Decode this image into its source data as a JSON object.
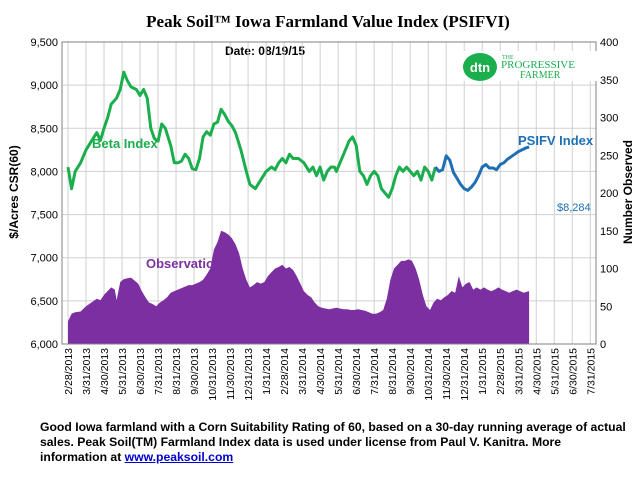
{
  "chart_data": {
    "type": "line",
    "title": "Peak Soil™ Iowa Farmland Value Index (PSIFVI)",
    "subtitle": "Date: 08/19/15",
    "ylabel_left": "$/Acres CSR(60)",
    "ylabel_right": "Number Observed",
    "ylim_left": [
      6000,
      9500
    ],
    "ylim_right": [
      0,
      400
    ],
    "yticks_left": [
      "6,000",
      "6,500",
      "7,000",
      "7,500",
      "8,000",
      "8,500",
      "9,000",
      "9,500"
    ],
    "yticks_right": [
      "0",
      "50",
      "100",
      "150",
      "200",
      "250",
      "300",
      "350",
      "400"
    ],
    "x_tick_labels": [
      "2/28/2013",
      "3/31/2013",
      "4/30/2013",
      "5/31/2013",
      "6/30/2013",
      "7/31/2013",
      "8/31/2013",
      "9/30/2013",
      "10/31/2013",
      "11/30/2013",
      "12/31/2013",
      "1/31/2014",
      "2/28/2014",
      "3/31/2014",
      "4/30/2014",
      "5/31/2014",
      "6/30/2014",
      "7/31/2014",
      "8/31/2014",
      "9/30/2014",
      "10/31/2014",
      "11/30/2014",
      "12/31/2014",
      "1/31/2015",
      "2/28/2015",
      "3/31/2015",
      "4/30/2015",
      "5/31/2015",
      "6/30/2015",
      "7/31/2015"
    ],
    "grid": true,
    "series": [
      {
        "name": "Beta Index",
        "axis": "left",
        "color": "#1aae4c",
        "points": [
          [
            0,
            8050
          ],
          [
            0.2,
            7800
          ],
          [
            0.4,
            8000
          ],
          [
            0.7,
            8100
          ],
          [
            1.0,
            8250
          ],
          [
            1.3,
            8350
          ],
          [
            1.6,
            8450
          ],
          [
            1.8,
            8360
          ],
          [
            2.0,
            8500
          ],
          [
            2.2,
            8620
          ],
          [
            2.4,
            8780
          ],
          [
            2.7,
            8850
          ],
          [
            2.9,
            8950
          ],
          [
            3.1,
            9150
          ],
          [
            3.3,
            9050
          ],
          [
            3.5,
            8980
          ],
          [
            3.8,
            8950
          ],
          [
            4.0,
            8880
          ],
          [
            4.2,
            8950
          ],
          [
            4.4,
            8850
          ],
          [
            4.6,
            8500
          ],
          [
            4.8,
            8380
          ],
          [
            5.0,
            8350
          ],
          [
            5.2,
            8550
          ],
          [
            5.4,
            8500
          ],
          [
            5.7,
            8300
          ],
          [
            5.9,
            8100
          ],
          [
            6.1,
            8100
          ],
          [
            6.3,
            8120
          ],
          [
            6.5,
            8200
          ],
          [
            6.7,
            8150
          ],
          [
            6.9,
            8030
          ],
          [
            7.1,
            8020
          ],
          [
            7.3,
            8150
          ],
          [
            7.5,
            8400
          ],
          [
            7.7,
            8460
          ],
          [
            7.9,
            8420
          ],
          [
            8.1,
            8550
          ],
          [
            8.3,
            8570
          ],
          [
            8.5,
            8720
          ],
          [
            8.7,
            8660
          ],
          [
            8.9,
            8580
          ],
          [
            9.1,
            8530
          ],
          [
            9.3,
            8450
          ],
          [
            9.6,
            8250
          ],
          [
            9.9,
            8000
          ],
          [
            10.1,
            7850
          ],
          [
            10.4,
            7800
          ],
          [
            10.7,
            7900
          ],
          [
            11.0,
            8000
          ],
          [
            11.3,
            8050
          ],
          [
            11.5,
            8020
          ],
          [
            11.7,
            8100
          ],
          [
            11.9,
            8150
          ],
          [
            12.1,
            8100
          ],
          [
            12.3,
            8200
          ],
          [
            12.5,
            8150
          ],
          [
            12.8,
            8150
          ],
          [
            13.1,
            8100
          ],
          [
            13.4,
            8000
          ],
          [
            13.6,
            8050
          ],
          [
            13.8,
            7950
          ],
          [
            13.9,
            8000
          ],
          [
            14.0,
            8050
          ],
          [
            14.2,
            7900
          ],
          [
            14.4,
            8000
          ],
          [
            14.6,
            8050
          ],
          [
            14.8,
            8050
          ],
          [
            14.9,
            8000
          ],
          [
            15.1,
            8100
          ],
          [
            15.4,
            8250
          ],
          [
            15.6,
            8350
          ],
          [
            15.8,
            8400
          ],
          [
            16.0,
            8300
          ],
          [
            16.2,
            8000
          ],
          [
            16.4,
            7950
          ],
          [
            16.6,
            7850
          ],
          [
            16.8,
            7950
          ],
          [
            17.0,
            8000
          ],
          [
            17.2,
            7950
          ],
          [
            17.4,
            7800
          ],
          [
            17.6,
            7750
          ],
          [
            17.8,
            7700
          ],
          [
            18.0,
            7800
          ],
          [
            18.2,
            7950
          ],
          [
            18.4,
            8050
          ],
          [
            18.6,
            8000
          ],
          [
            18.8,
            8050
          ],
          [
            19.0,
            8000
          ],
          [
            19.2,
            7950
          ],
          [
            19.4,
            8000
          ],
          [
            19.6,
            7900
          ],
          [
            19.8,
            8050
          ],
          [
            20.0,
            8000
          ],
          [
            20.2,
            7900
          ],
          [
            20.4,
            8050
          ]
        ]
      },
      {
        "name": "PSIFV Index",
        "axis": "left",
        "color": "#1f6fb4",
        "points": [
          [
            20.4,
            8050
          ],
          [
            20.6,
            8000
          ],
          [
            20.8,
            8020
          ],
          [
            21.0,
            8180
          ],
          [
            21.2,
            8130
          ],
          [
            21.4,
            7990
          ],
          [
            21.6,
            7920
          ],
          [
            21.8,
            7850
          ],
          [
            22.0,
            7800
          ],
          [
            22.2,
            7780
          ],
          [
            22.4,
            7820
          ],
          [
            22.6,
            7870
          ],
          [
            22.8,
            7950
          ],
          [
            23.0,
            8050
          ],
          [
            23.2,
            8080
          ],
          [
            23.4,
            8040
          ],
          [
            23.6,
            8040
          ],
          [
            23.8,
            8020
          ],
          [
            24.0,
            8080
          ],
          [
            24.2,
            8100
          ],
          [
            24.4,
            8140
          ],
          [
            24.6,
            8170
          ],
          [
            24.8,
            8200
          ],
          [
            25.0,
            8230
          ],
          [
            25.2,
            8250
          ],
          [
            25.4,
            8270
          ],
          [
            25.6,
            8284
          ]
        ]
      },
      {
        "name": "Observations",
        "axis": "right",
        "type": "area",
        "color": "#7b2fa1",
        "points": [
          [
            0,
            30
          ],
          [
            0.2,
            40
          ],
          [
            0.4,
            42
          ],
          [
            0.7,
            43
          ],
          [
            1.0,
            50
          ],
          [
            1.3,
            55
          ],
          [
            1.6,
            60
          ],
          [
            1.8,
            58
          ],
          [
            2.0,
            65
          ],
          [
            2.2,
            70
          ],
          [
            2.4,
            75
          ],
          [
            2.6,
            72
          ],
          [
            2.7,
            58
          ],
          [
            2.9,
            82
          ],
          [
            3.1,
            86
          ],
          [
            3.3,
            87
          ],
          [
            3.5,
            88
          ],
          [
            3.7,
            84
          ],
          [
            3.9,
            80
          ],
          [
            4.1,
            70
          ],
          [
            4.3,
            62
          ],
          [
            4.5,
            55
          ],
          [
            4.7,
            53
          ],
          [
            4.9,
            50
          ],
          [
            5.1,
            55
          ],
          [
            5.3,
            58
          ],
          [
            5.5,
            62
          ],
          [
            5.7,
            68
          ],
          [
            5.9,
            70
          ],
          [
            6.1,
            72
          ],
          [
            6.3,
            74
          ],
          [
            6.5,
            76
          ],
          [
            6.7,
            78
          ],
          [
            6.9,
            78
          ],
          [
            7.1,
            80
          ],
          [
            7.3,
            82
          ],
          [
            7.5,
            85
          ],
          [
            7.7,
            92
          ],
          [
            7.9,
            100
          ],
          [
            8.1,
            125
          ],
          [
            8.3,
            135
          ],
          [
            8.5,
            150
          ],
          [
            8.7,
            148
          ],
          [
            8.9,
            145
          ],
          [
            9.1,
            140
          ],
          [
            9.3,
            132
          ],
          [
            9.5,
            120
          ],
          [
            9.7,
            100
          ],
          [
            9.9,
            85
          ],
          [
            10.1,
            75
          ],
          [
            10.3,
            78
          ],
          [
            10.5,
            82
          ],
          [
            10.7,
            80
          ],
          [
            10.9,
            82
          ],
          [
            11.1,
            90
          ],
          [
            11.3,
            95
          ],
          [
            11.5,
            100
          ],
          [
            11.7,
            102
          ],
          [
            11.9,
            105
          ],
          [
            12.1,
            100
          ],
          [
            12.3,
            102
          ],
          [
            12.5,
            98
          ],
          [
            12.7,
            90
          ],
          [
            12.9,
            80
          ],
          [
            13.1,
            70
          ],
          [
            13.3,
            65
          ],
          [
            13.5,
            62
          ],
          [
            13.7,
            55
          ],
          [
            13.9,
            50
          ],
          [
            14.1,
            48
          ],
          [
            14.3,
            47
          ],
          [
            14.5,
            46
          ],
          [
            14.7,
            47
          ],
          [
            14.9,
            48
          ],
          [
            15.1,
            47
          ],
          [
            15.3,
            46
          ],
          [
            15.5,
            46
          ],
          [
            15.7,
            45
          ],
          [
            15.9,
            45
          ],
          [
            16.1,
            46
          ],
          [
            16.3,
            45
          ],
          [
            16.5,
            44
          ],
          [
            16.7,
            42
          ],
          [
            16.9,
            40
          ],
          [
            17.1,
            40
          ],
          [
            17.3,
            42
          ],
          [
            17.5,
            45
          ],
          [
            17.7,
            60
          ],
          [
            17.9,
            85
          ],
          [
            18.1,
            100
          ],
          [
            18.3,
            105
          ],
          [
            18.5,
            110
          ],
          [
            18.7,
            110
          ],
          [
            18.9,
            112
          ],
          [
            19.1,
            110
          ],
          [
            19.3,
            100
          ],
          [
            19.5,
            85
          ],
          [
            19.7,
            65
          ],
          [
            19.9,
            50
          ],
          [
            20.1,
            45
          ],
          [
            20.3,
            55
          ],
          [
            20.5,
            60
          ],
          [
            20.7,
            58
          ],
          [
            20.9,
            62
          ],
          [
            21.1,
            65
          ],
          [
            21.3,
            70
          ],
          [
            21.5,
            68
          ],
          [
            21.7,
            90
          ],
          [
            21.9,
            75
          ],
          [
            22.1,
            80
          ],
          [
            22.3,
            82
          ],
          [
            22.5,
            72
          ],
          [
            22.7,
            75
          ],
          [
            22.9,
            72
          ],
          [
            23.1,
            75
          ],
          [
            23.3,
            72
          ],
          [
            23.5,
            70
          ],
          [
            23.7,
            72
          ],
          [
            23.9,
            75
          ],
          [
            24.1,
            72
          ],
          [
            24.3,
            70
          ],
          [
            24.5,
            68
          ],
          [
            24.7,
            70
          ],
          [
            24.9,
            72
          ],
          [
            25.1,
            70
          ],
          [
            25.3,
            68
          ],
          [
            25.6,
            70
          ]
        ]
      }
    ],
    "annotations": {
      "beta_label": "Beta Index",
      "psifv_label": "PSIFV Index",
      "observations_label": "Observations",
      "last_value_label": "$8,284"
    },
    "logo": {
      "text_dtn": "dtn",
      "text_the": "THE",
      "text_progressive": "PROGRESSIVE",
      "text_farmer": "FARMER"
    }
  },
  "caption": {
    "text": "Good Iowa farmland with a Corn Suitability Rating of 60, based on a 30-day running average of actual sales.  Peak Soil(TM) Farmland  Index data is used under license  from Paul V. Kanitra. More information at ",
    "link": "www.peaksoil.com"
  }
}
